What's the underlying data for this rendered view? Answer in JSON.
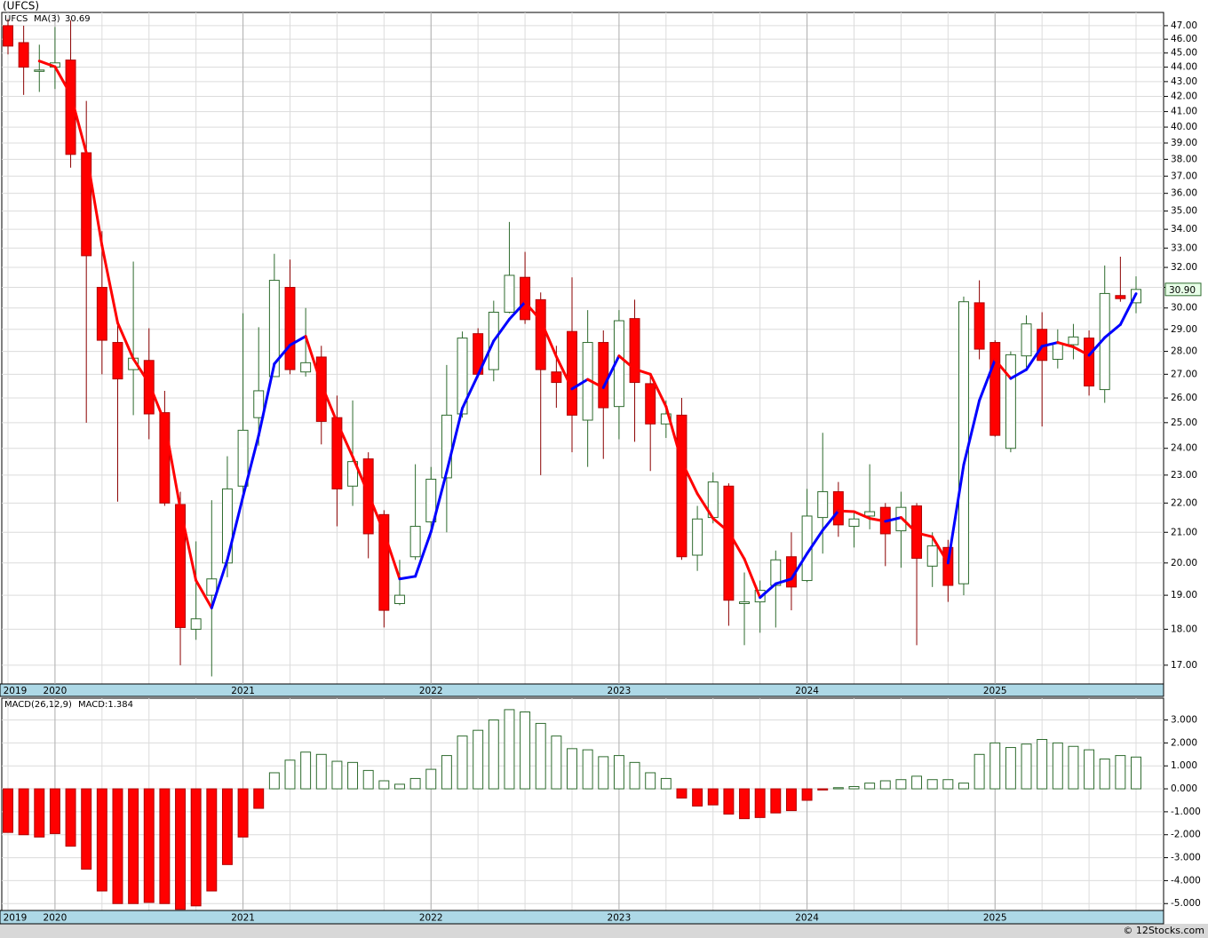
{
  "chart_data": [
    {
      "type": "candlestick",
      "title": "(UFCS)",
      "symbol": "UFCS",
      "ma_name": "MA(3)",
      "ma_last_label": "30.69",
      "last_price_label": "30.90",
      "log_scale": true,
      "grid": true,
      "up_color": "#ffffff",
      "up_edge": "#2e6b2e",
      "down_color": "#ff0000",
      "ma_up_color": "#0000ff",
      "ma_down_color": "#ff0000",
      "ylim": [
        16.5,
        48
      ],
      "yticks": [
        {
          "value": 17,
          "label": "17.00"
        },
        {
          "value": 18,
          "label": "18.00"
        },
        {
          "value": 19,
          "label": "19.00"
        },
        {
          "value": 20,
          "label": "20.00"
        },
        {
          "value": 21,
          "label": "21.00"
        },
        {
          "value": 22,
          "label": "22.00"
        },
        {
          "value": 23,
          "label": "23.00"
        },
        {
          "value": 24,
          "label": "24.00"
        },
        {
          "value": 25,
          "label": "25.00"
        },
        {
          "value": 26,
          "label": "26.00"
        },
        {
          "value": 27,
          "label": "27.00"
        },
        {
          "value": 28,
          "label": "28.00"
        },
        {
          "value": 29,
          "label": "29.00"
        },
        {
          "value": 30,
          "label": "30.00"
        },
        {
          "value": 31,
          "label": "31.00"
        },
        {
          "value": 32,
          "label": "32.00"
        },
        {
          "value": 33,
          "label": "33.00"
        },
        {
          "value": 34,
          "label": "34.00"
        },
        {
          "value": 35,
          "label": "35.00"
        },
        {
          "value": 36,
          "label": "36.00"
        },
        {
          "value": 37,
          "label": "37.00"
        },
        {
          "value": 38,
          "label": "38.00"
        },
        {
          "value": 39,
          "label": "39.00"
        },
        {
          "value": 40,
          "label": "40.00"
        },
        {
          "value": 41,
          "label": "41.00"
        },
        {
          "value": 42,
          "label": "42.00"
        },
        {
          "value": 43,
          "label": "43.00"
        },
        {
          "value": 44,
          "label": "44.00"
        },
        {
          "value": 45,
          "label": "45.00"
        },
        {
          "value": 46,
          "label": "46.00"
        },
        {
          "value": 47,
          "label": "47.00"
        }
      ],
      "categories": [
        "2019",
        null,
        null,
        "2020",
        null,
        null,
        null,
        null,
        null,
        null,
        null,
        null,
        null,
        null,
        null,
        "2021",
        null,
        null,
        null,
        null,
        null,
        null,
        null,
        null,
        null,
        null,
        null,
        "2022",
        null,
        null,
        null,
        null,
        null,
        null,
        null,
        null,
        null,
        null,
        null,
        "2023",
        null,
        null,
        null,
        null,
        null,
        null,
        null,
        null,
        null,
        null,
        null,
        "2024",
        null,
        null,
        null,
        null,
        null,
        null,
        null,
        null,
        null,
        null,
        null,
        "2025",
        null,
        null,
        null,
        null,
        null,
        null,
        null,
        null,
        null
      ],
      "open": [
        47.0,
        45.75,
        43.8,
        44.0,
        44.5,
        38.4,
        31.0,
        28.4,
        27.2,
        27.6,
        25.4,
        21.95,
        18.0,
        19.0,
        20.0,
        22.6,
        25.2,
        26.9,
        31.0,
        27.1,
        27.75,
        25.2,
        22.6,
        23.6,
        21.6,
        18.75,
        20.2,
        21.35,
        22.9,
        25.35,
        28.8,
        27.2,
        29.8,
        31.5,
        30.4,
        27.1,
        28.9,
        25.1,
        28.4,
        25.65,
        29.5,
        26.6,
        24.95,
        25.3,
        20.25,
        21.5,
        22.6,
        18.75,
        18.8,
        19.3,
        20.2,
        19.45,
        21.5,
        22.4,
        21.2,
        21.55,
        21.85,
        21.05,
        21.9,
        19.9,
        20.5,
        19.35,
        30.25,
        28.4,
        24.0,
        27.8,
        29.0,
        27.65,
        28.3,
        28.6,
        26.35,
        30.6,
        30.25
      ],
      "high": [
        47.5,
        47.0,
        45.6,
        46.9,
        47.4,
        41.7,
        33.9,
        29.5,
        32.3,
        29.05,
        26.3,
        22.4,
        20.7,
        22.1,
        23.7,
        29.75,
        29.1,
        32.7,
        32.4,
        30.0,
        28.25,
        26.1,
        25.9,
        23.85,
        21.75,
        20.1,
        23.4,
        23.3,
        27.4,
        28.9,
        29.05,
        30.35,
        34.4,
        32.8,
        30.75,
        28.25,
        31.5,
        29.9,
        28.95,
        29.9,
        30.4,
        27.05,
        25.9,
        26.0,
        21.9,
        23.1,
        22.7,
        19.7,
        19.45,
        20.4,
        21.0,
        22.5,
        24.6,
        22.75,
        21.7,
        23.4,
        22.0,
        22.4,
        22.0,
        21.0,
        20.75,
        30.55,
        31.35,
        28.5,
        28.0,
        29.65,
        29.8,
        29.0,
        29.25,
        28.95,
        32.1,
        32.55,
        31.55
      ],
      "low": [
        44.9,
        42.1,
        42.3,
        42.5,
        37.5,
        25.0,
        27.0,
        22.05,
        25.3,
        24.35,
        21.9,
        17.0,
        17.7,
        16.7,
        19.55,
        22.2,
        24.1,
        26.9,
        27.0,
        26.9,
        24.15,
        21.2,
        21.9,
        20.15,
        18.05,
        18.7,
        20.1,
        21.0,
        21.0,
        25.2,
        26.85,
        26.7,
        29.75,
        29.25,
        23.0,
        25.6,
        23.85,
        23.3,
        23.6,
        24.35,
        24.25,
        23.15,
        24.4,
        20.1,
        19.75,
        21.3,
        18.1,
        17.55,
        17.9,
        18.05,
        18.55,
        19.4,
        20.3,
        20.85,
        20.5,
        21.1,
        19.9,
        19.85,
        17.55,
        19.25,
        18.8,
        19.0,
        27.65,
        24.45,
        23.85,
        27.3,
        24.85,
        27.25,
        27.65,
        26.1,
        25.8,
        30.3,
        29.75
      ],
      "close": [
        45.5,
        44.0,
        43.8,
        44.3,
        38.3,
        32.6,
        28.5,
        26.8,
        27.7,
        25.35,
        22.0,
        18.05,
        18.3,
        19.5,
        22.5,
        24.7,
        26.3,
        31.35,
        27.2,
        27.5,
        25.05,
        22.5,
        23.5,
        20.95,
        18.55,
        19.0,
        21.2,
        22.85,
        25.3,
        28.6,
        27.0,
        29.8,
        31.6,
        29.45,
        27.2,
        26.65,
        25.3,
        28.4,
        25.6,
        29.4,
        26.65,
        24.95,
        25.35,
        20.2,
        21.45,
        22.75,
        18.85,
        18.8,
        19.15,
        20.1,
        19.25,
        21.55,
        22.4,
        21.25,
        21.45,
        21.7,
        20.95,
        21.85,
        20.15,
        20.55,
        19.3,
        30.3,
        28.1,
        24.5,
        27.85,
        29.25,
        27.6,
        28.35,
        28.65,
        26.5,
        30.7,
        30.45,
        30.9
      ],
      "ma": [
        null,
        null,
        44.43,
        44.03,
        42.13,
        38.4,
        33.13,
        29.3,
        27.67,
        26.62,
        25.02,
        21.8,
        19.45,
        18.62,
        20.1,
        22.23,
        24.5,
        27.45,
        28.28,
        28.68,
        26.58,
        25.02,
        23.68,
        22.32,
        21.0,
        19.5,
        19.58,
        21.02,
        23.12,
        25.58,
        26.97,
        28.47,
        29.47,
        30.28,
        29.42,
        27.77,
        26.38,
        26.78,
        26.43,
        27.8,
        27.22,
        27.0,
        25.65,
        23.5,
        22.33,
        21.47,
        21.02,
        20.13,
        18.93,
        19.35,
        19.5,
        20.3,
        21.07,
        21.73,
        21.7,
        21.47,
        21.37,
        21.5,
        20.98,
        20.85,
        20.0,
        23.38,
        25.9,
        27.63,
        26.82,
        27.2,
        28.23,
        28.4,
        28.2,
        27.83,
        28.62,
        29.22,
        30.69
      ]
    },
    {
      "type": "bar",
      "title": "MACD(26,12,9)",
      "value_name": "MACD:1.384",
      "grid": true,
      "up_edge": "#2e6b2e",
      "down_color": "#ff0000",
      "ylim": [
        -5.3,
        3.95
      ],
      "yticks": [
        {
          "value": -5,
          "label": "-5.000"
        },
        {
          "value": -4,
          "label": "-4.000"
        },
        {
          "value": -3,
          "label": "-3.000"
        },
        {
          "value": -2,
          "label": "-2.000"
        },
        {
          "value": -1,
          "label": "-1.000"
        },
        {
          "value": 0,
          "label": "0.000"
        },
        {
          "value": 1,
          "label": "1.000"
        },
        {
          "value": 2,
          "label": "2.000"
        },
        {
          "value": 3,
          "label": "3.000"
        }
      ],
      "categories": [
        "2019",
        null,
        null,
        "2020",
        null,
        null,
        null,
        null,
        null,
        null,
        null,
        null,
        null,
        null,
        null,
        "2021",
        null,
        null,
        null,
        null,
        null,
        null,
        null,
        null,
        null,
        null,
        null,
        "2022",
        null,
        null,
        null,
        null,
        null,
        null,
        null,
        null,
        null,
        null,
        null,
        "2023",
        null,
        null,
        null,
        null,
        null,
        null,
        null,
        null,
        null,
        null,
        null,
        "2024",
        null,
        null,
        null,
        null,
        null,
        null,
        null,
        null,
        null,
        null,
        null,
        "2025",
        null,
        null,
        null,
        null,
        null,
        null,
        null,
        null,
        null
      ],
      "values": [
        -1.9,
        -2.0,
        -2.1,
        -1.95,
        -2.5,
        -3.5,
        -4.45,
        -5.0,
        -5.0,
        -4.95,
        -5.0,
        -5.25,
        -5.1,
        -4.45,
        -3.3,
        -2.1,
        -0.85,
        0.7,
        1.25,
        1.6,
        1.5,
        1.2,
        1.15,
        0.8,
        0.35,
        0.2,
        0.45,
        0.85,
        1.45,
        2.3,
        2.55,
        3.0,
        3.45,
        3.35,
        2.85,
        2.3,
        1.75,
        1.7,
        1.4,
        1.45,
        1.15,
        0.7,
        0.45,
        -0.4,
        -0.75,
        -0.7,
        -1.1,
        -1.3,
        -1.25,
        -1.05,
        -0.95,
        -0.5,
        -0.05,
        0.05,
        0.1,
        0.25,
        0.35,
        0.4,
        0.55,
        0.4,
        0.4,
        0.25,
        1.5,
        2.0,
        1.8,
        1.95,
        2.15,
        2.0,
        1.85,
        1.7,
        1.3,
        1.45,
        1.384
      ]
    }
  ],
  "footer": "© 12Stocks.com"
}
